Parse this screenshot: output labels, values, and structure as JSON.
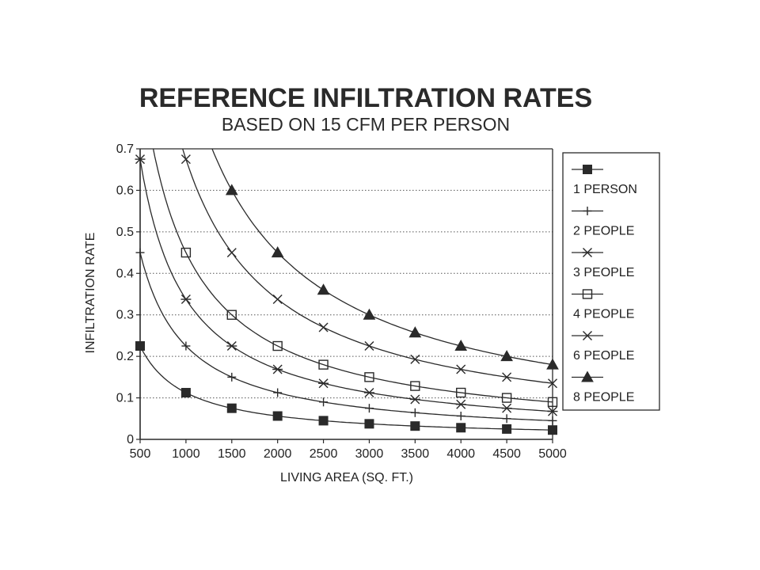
{
  "chart_data": {
    "type": "line",
    "title": "REFERENCE INFILTRATION RATES",
    "subtitle": "BASED ON 15 CFM PER PERSON",
    "xlabel": "LIVING AREA (SQ. FT.)",
    "ylabel": "INFILTRATION RATE",
    "xlim": [
      500,
      5000
    ],
    "ylim": [
      0,
      0.7
    ],
    "x_ticks": [
      500,
      1000,
      1500,
      2000,
      2500,
      3000,
      3500,
      4000,
      4500,
      5000
    ],
    "y_ticks": [
      0,
      0.1,
      0.2,
      0.3,
      0.4,
      0.5,
      0.6,
      0.7
    ],
    "y_tick_labels": [
      "0",
      "0.1",
      "0.2",
      "0.3",
      "0.4",
      "0.5",
      "0.6",
      "0.7"
    ],
    "grid": "horizontal dotted",
    "legend_position": "right",
    "line_color": "#2a2a2a",
    "series": [
      {
        "name": "1 PERSON",
        "marker": "filled-square",
        "x": [
          500,
          1000,
          1500,
          2000,
          2500,
          3000,
          3500,
          4000,
          4500,
          5000
        ],
        "y": [
          0.225,
          0.1125,
          0.075,
          0.05625,
          0.045,
          0.0375,
          0.0321,
          0.0281,
          0.025,
          0.0225
        ]
      },
      {
        "name": "2 PEOPLE",
        "marker": "plus",
        "x": [
          500,
          1000,
          1500,
          2000,
          2500,
          3000,
          3500,
          4000,
          4500,
          5000
        ],
        "y": [
          0.45,
          0.225,
          0.15,
          0.1125,
          0.09,
          0.075,
          0.0643,
          0.05625,
          0.05,
          0.045
        ]
      },
      {
        "name": "3 PEOPLE",
        "marker": "asterisk",
        "x": [
          500,
          1000,
          1500,
          2000,
          2500,
          3000,
          3500,
          4000,
          4500,
          5000
        ],
        "y": [
          0.675,
          0.3375,
          0.225,
          0.16875,
          0.135,
          0.1125,
          0.0964,
          0.0844,
          0.075,
          0.0675
        ]
      },
      {
        "name": "4 PEOPLE",
        "marker": "open-square",
        "x": [
          1000,
          1500,
          2000,
          2500,
          3000,
          3500,
          4000,
          4500,
          5000
        ],
        "y": [
          0.45,
          0.3,
          0.225,
          0.18,
          0.15,
          0.1286,
          0.1125,
          0.1,
          0.09
        ]
      },
      {
        "name": "6 PEOPLE",
        "marker": "x",
        "x": [
          1000,
          1500,
          2000,
          2500,
          3000,
          3500,
          4000,
          4500,
          5000
        ],
        "y": [
          0.675,
          0.45,
          0.3375,
          0.27,
          0.225,
          0.1929,
          0.16875,
          0.15,
          0.135
        ]
      },
      {
        "name": "8 PEOPLE",
        "marker": "filled-triangle",
        "x": [
          1500,
          2000,
          2500,
          3000,
          3500,
          4000,
          4500,
          5000
        ],
        "y": [
          0.6,
          0.45,
          0.36,
          0.3,
          0.2571,
          0.225,
          0.2,
          0.18
        ]
      }
    ]
  }
}
